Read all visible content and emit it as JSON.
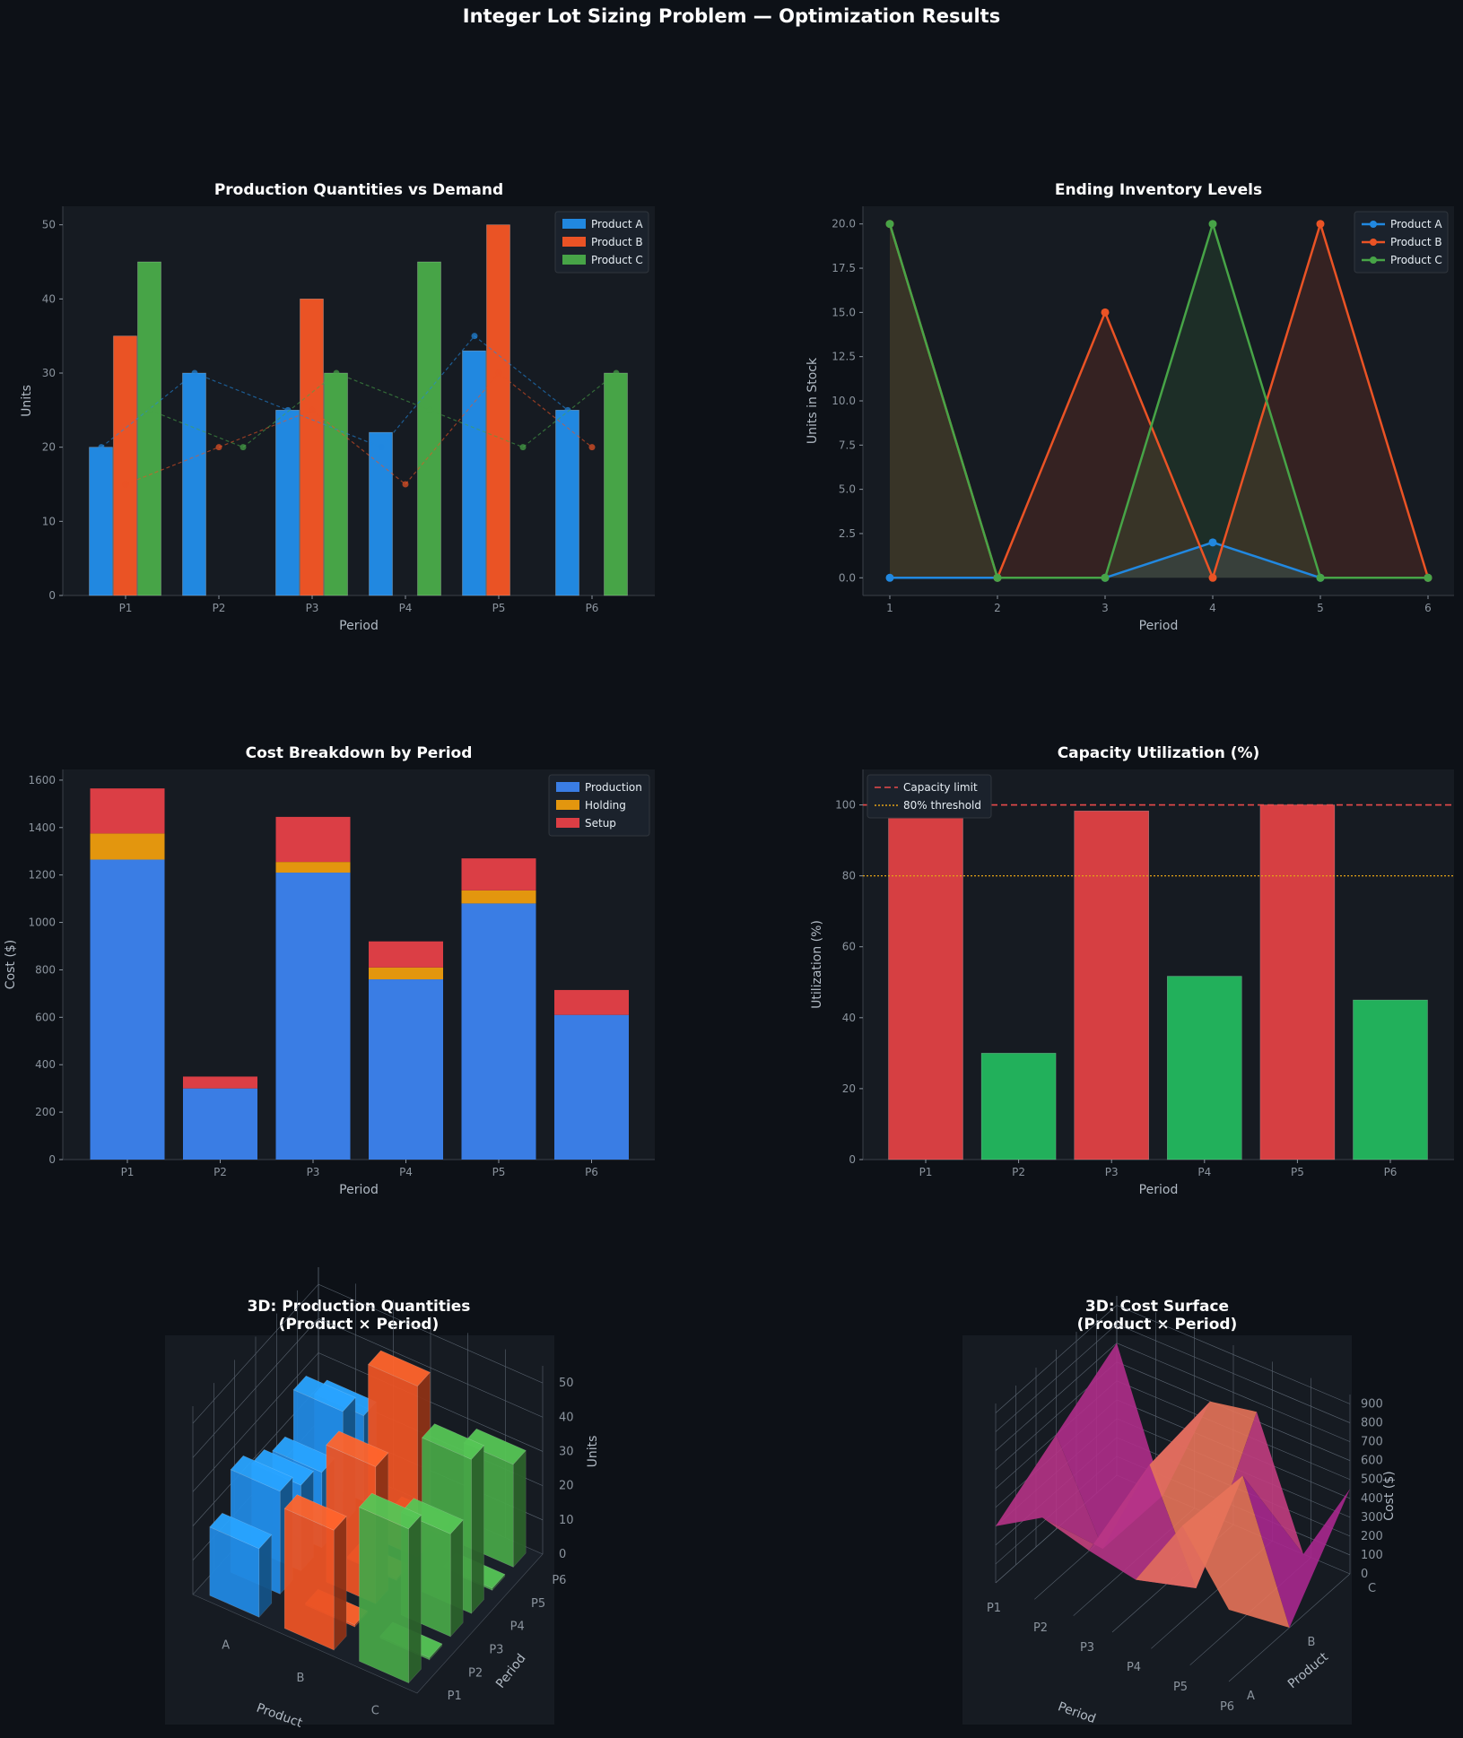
{
  "suptitle": "Integer Lot Sizing Problem — Optimization Results",
  "colors": {
    "bg": "#0d1117",
    "panel": "#161b22",
    "axis": "#3a4048",
    "tick": "#8b949e",
    "label": "#b1bac4",
    "title": "#ffffff",
    "productA": "#2188e0",
    "productB": "#ea5325",
    "productC": "#47a447",
    "production": "#3a7de4",
    "holding": "#e3960e",
    "setup": "#db3e45",
    "util_high": "#d63f42",
    "util_low": "#22b05b",
    "cap_limit": "#e84b4b",
    "threshold": "#e3a216"
  },
  "chart_data": [
    {
      "id": "production",
      "type": "bar",
      "title": "Production Quantities vs Demand",
      "xlabel": "Period",
      "ylabel": "Units",
      "categories": [
        "P1",
        "P2",
        "P3",
        "P4",
        "P5",
        "P6"
      ],
      "ylim": [
        0,
        52.5
      ],
      "yticks": [
        0,
        10,
        20,
        30,
        40,
        50
      ],
      "legend": "top-right",
      "series": [
        {
          "name": "Product A",
          "values": [
            20,
            30,
            25,
            22,
            33,
            25
          ]
        },
        {
          "name": "Product B",
          "values": [
            35,
            0,
            40,
            0,
            50,
            0
          ]
        },
        {
          "name": "Product C",
          "values": [
            45,
            0,
            30,
            45,
            0,
            30
          ]
        }
      ],
      "demand": [
        {
          "name": "Product A",
          "values": [
            20,
            30,
            25,
            20,
            35,
            25
          ]
        },
        {
          "name": "Product B",
          "values": [
            15,
            20,
            25,
            15,
            30,
            20
          ]
        },
        {
          "name": "Product C",
          "values": [
            25,
            20,
            30,
            25,
            20,
            30
          ]
        }
      ]
    },
    {
      "id": "inventory",
      "type": "area",
      "title": "Ending Inventory Levels",
      "xlabel": "Period",
      "ylabel": "Units in Stock",
      "x": [
        1,
        2,
        3,
        4,
        5,
        6
      ],
      "xticks": [
        "1",
        "2",
        "3",
        "4",
        "5",
        "6"
      ],
      "ylim": [
        -1,
        21
      ],
      "yticks": [
        "0.0",
        "2.5",
        "5.0",
        "7.5",
        "10.0",
        "12.5",
        "15.0",
        "17.5",
        "20.0"
      ],
      "legend": "top-right",
      "series": [
        {
          "name": "Product A",
          "values": [
            0,
            0,
            0,
            2,
            0,
            0
          ]
        },
        {
          "name": "Product B",
          "values": [
            20,
            0,
            15,
            0,
            20,
            0
          ]
        },
        {
          "name": "Product C",
          "values": [
            20,
            0,
            0,
            20,
            0,
            0
          ]
        }
      ]
    },
    {
      "id": "cost",
      "type": "bar",
      "title": "Cost Breakdown by Period",
      "xlabel": "Period",
      "ylabel": "Cost ($)",
      "categories": [
        "P1",
        "P2",
        "P3",
        "P4",
        "P5",
        "P6"
      ],
      "ylim": [
        0,
        1645
      ],
      "yticks": [
        0,
        200,
        400,
        600,
        800,
        1000,
        1200,
        1400,
        1600
      ],
      "stacked": true,
      "legend": "top-right",
      "series": [
        {
          "name": "Production",
          "values": [
            1265,
            300,
            1210,
            760,
            1080,
            610
          ]
        },
        {
          "name": "Holding",
          "values": [
            110,
            0,
            45,
            50,
            55,
            0
          ]
        },
        {
          "name": "Setup",
          "values": [
            190,
            50,
            190,
            110,
            135,
            105
          ]
        }
      ]
    },
    {
      "id": "capacity",
      "type": "bar",
      "title": "Capacity Utilization (%)",
      "xlabel": "Period",
      "ylabel": "Utilization (%)",
      "categories": [
        "P1",
        "P2",
        "P3",
        "P4",
        "P5",
        "P6"
      ],
      "ylim": [
        0,
        110
      ],
      "yticks": [
        0,
        20,
        40,
        60,
        80,
        100
      ],
      "values": [
        96.7,
        30,
        98.3,
        51.7,
        100,
        45
      ],
      "capacity_limit": 100,
      "threshold": 80,
      "legend": "top-left",
      "legend_items": [
        "Capacity limit",
        "80% threshold"
      ]
    },
    {
      "id": "prod3d",
      "type": "bar3d",
      "title_line1": "3D: Production Quantities",
      "title_line2": "(Product × Period)",
      "xlabel": "Product",
      "ylabel": "Period",
      "zlabel": "Units",
      "products": [
        "A",
        "B",
        "C"
      ],
      "periods": [
        "P1",
        "P2",
        "P3",
        "P4",
        "P5",
        "P6"
      ],
      "zticks": [
        "0",
        "10",
        "20",
        "30",
        "40",
        "50"
      ],
      "values": [
        [
          20,
          30,
          25,
          22,
          33,
          25
        ],
        [
          35,
          0,
          40,
          0,
          50,
          0
        ],
        [
          45,
          0,
          30,
          45,
          0,
          30
        ]
      ]
    },
    {
      "id": "cost3d",
      "type": "surface",
      "title_line1": "3D: Cost Surface",
      "title_line2": "(Product × Period)",
      "xlabel": "Period",
      "ylabel": "Product",
      "zlabel": "Cost ($)",
      "periods": [
        "P1",
        "P2",
        "P3",
        "P4",
        "P5",
        "P6"
      ],
      "products": [
        "A",
        "B",
        "C"
      ],
      "zticks": [
        "0",
        "100",
        "200",
        "300",
        "400",
        "500",
        "600",
        "700",
        "800",
        "900"
      ],
      "values": [
        [
          300,
          450,
          380,
          330,
          720,
          380
        ],
        [
          500,
          0,
          550,
          0,
          700,
          0
        ],
        [
          700,
          0,
          600,
          650,
          0,
          450
        ]
      ]
    }
  ]
}
